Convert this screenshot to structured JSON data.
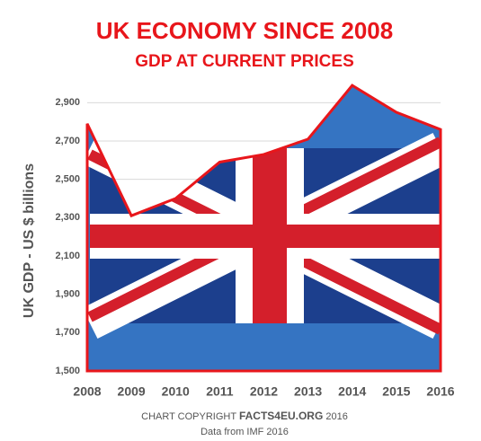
{
  "chart_data": {
    "type": "area",
    "title": "UK ECONOMY SINCE 2008",
    "subtitle": "GDP AT CURRENT PRICES",
    "y_label": "UK GDP - US $ billions",
    "categories": [
      "2008",
      "2009",
      "2010",
      "2011",
      "2012",
      "2013",
      "2014",
      "2015",
      "2016"
    ],
    "values": [
      2790,
      2310,
      2400,
      2590,
      2630,
      2710,
      2990,
      2850,
      2760
    ],
    "color": "#e8161b",
    "ylim": [
      1500,
      3000
    ],
    "yticks": [
      {
        "value": 1500,
        "label": "1,500"
      },
      {
        "value": 1700,
        "label": "1,700"
      },
      {
        "value": 1900,
        "label": "1,900"
      },
      {
        "value": 2100,
        "label": "2,100"
      },
      {
        "value": 2300,
        "label": "2,300"
      },
      {
        "value": 2500,
        "label": "2,500"
      },
      {
        "value": 2700,
        "label": "2,700"
      },
      {
        "value": 2900,
        "label": "2,900"
      }
    ],
    "grid": true,
    "footer": {
      "prefix": "CHART COPYRIGHT",
      "brand": "FACTS4EU.ORG",
      "year": "2016",
      "source": "Data from IMF 2016"
    }
  }
}
